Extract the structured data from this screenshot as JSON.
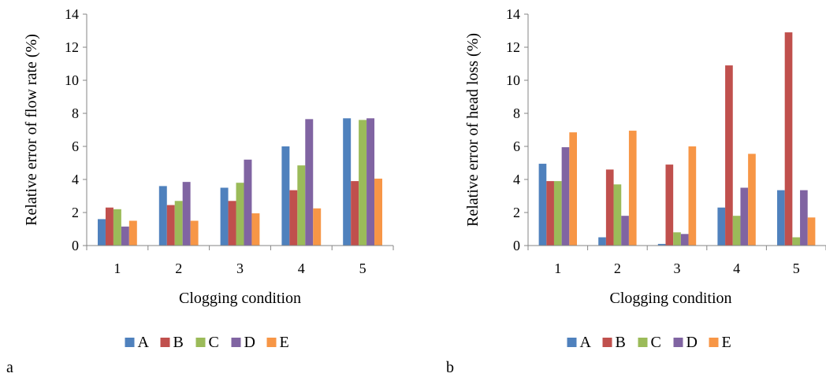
{
  "panels": {
    "a": {
      "letter": "a"
    },
    "b": {
      "letter": "b"
    }
  },
  "chart_data": [
    {
      "type": "bar",
      "panel": "a",
      "title": "",
      "xlabel": "Clogging condition",
      "ylabel": "Relative error of flow rate (%)",
      "ylim": [
        0,
        14
      ],
      "yticks": [
        "0",
        "2",
        "4",
        "6",
        "8",
        "10",
        "12",
        "14"
      ],
      "categories": [
        "1",
        "2",
        "3",
        "4",
        "5"
      ],
      "grid": false,
      "legend": "bottom",
      "series": [
        {
          "name": "A",
          "color": "#4F81BD",
          "values": [
            1.6,
            3.6,
            3.5,
            6.0,
            7.7
          ]
        },
        {
          "name": "B",
          "color": "#C0504D",
          "values": [
            2.3,
            2.45,
            2.7,
            3.35,
            3.9
          ]
        },
        {
          "name": "C",
          "color": "#9BBB59",
          "values": [
            2.2,
            2.7,
            3.8,
            4.85,
            7.6
          ]
        },
        {
          "name": "D",
          "color": "#8064A2",
          "values": [
            1.15,
            3.85,
            5.2,
            7.65,
            7.7
          ]
        },
        {
          "name": "E",
          "color": "#F79646",
          "values": [
            1.5,
            1.5,
            1.95,
            2.25,
            4.05
          ]
        }
      ]
    },
    {
      "type": "bar",
      "panel": "b",
      "title": "",
      "xlabel": "Clogging condition",
      "ylabel": "Relative error of head loss (%)",
      "ylim": [
        0,
        14
      ],
      "yticks": [
        "0",
        "2",
        "4",
        "6",
        "8",
        "10",
        "12",
        "14"
      ],
      "categories": [
        "1",
        "2",
        "3",
        "4",
        "5"
      ],
      "grid": false,
      "legend": "bottom",
      "series": [
        {
          "name": "A",
          "color": "#4F81BD",
          "values": [
            4.95,
            0.5,
            0.1,
            2.3,
            3.35
          ]
        },
        {
          "name": "B",
          "color": "#C0504D",
          "values": [
            3.9,
            4.6,
            4.9,
            10.9,
            12.9
          ]
        },
        {
          "name": "C",
          "color": "#9BBB59",
          "values": [
            3.9,
            3.7,
            0.8,
            1.8,
            0.5
          ]
        },
        {
          "name": "D",
          "color": "#8064A2",
          "values": [
            5.95,
            1.8,
            0.7,
            3.5,
            3.35
          ]
        },
        {
          "name": "E",
          "color": "#F79646",
          "values": [
            6.85,
            6.95,
            6.0,
            5.55,
            1.7
          ]
        }
      ]
    }
  ]
}
